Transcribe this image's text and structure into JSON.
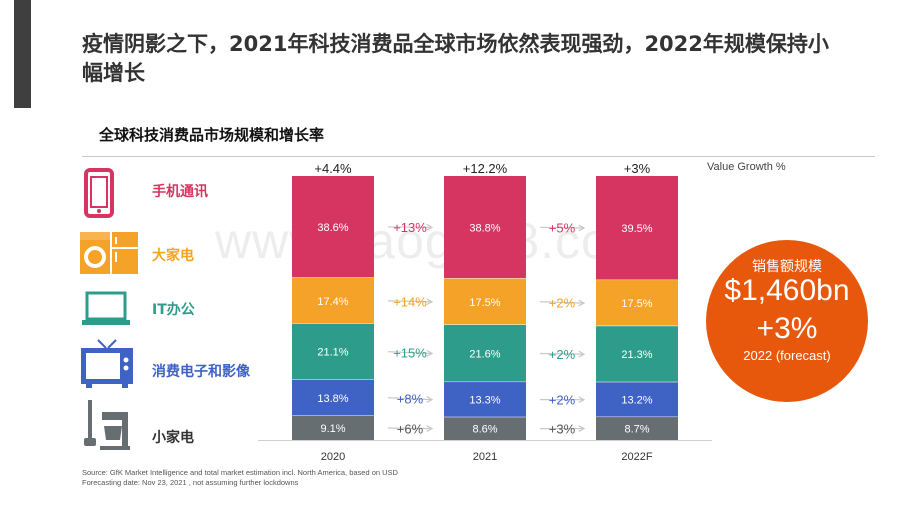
{
  "slide": {
    "title": "疫情阴影之下，2021年科技消费品全球市场依然表现强劲，2022年规模保持小幅增长",
    "subtitle": "全球科技消费品市场规模和增长率",
    "value_growth_label": "Value Growth %",
    "source_line1": "Source: GfK Market Intelligence and total market estimation incl. North America, based on USD",
    "source_line2": "Forecasting date: Nov 23, 2021 , not assuming further lockdowns",
    "watermark": "www.baogao8.com"
  },
  "categories": [
    {
      "label": "手机通讯",
      "icon": "smartphone-icon",
      "color": "#d63562"
    },
    {
      "label": "大家电",
      "icon": "washer-fridge-icon",
      "color": "#f5a228"
    },
    {
      "label": "IT办公",
      "icon": "laptop-icon",
      "color": "#2e9c8a"
    },
    {
      "label": "消费电子和影像",
      "icon": "tv-icon",
      "color": "#3f62c5"
    },
    {
      "label": "小家电",
      "icon": "appliance-icon",
      "color": "#666e72"
    }
  ],
  "badge": {
    "line1": "销售额规模",
    "line2": "$1,460bn",
    "line3": "+3%",
    "line4": "2022 (forecast)",
    "color": "#e8580c"
  },
  "chart_data": {
    "type": "bar",
    "stacked": true,
    "categories": [
      "2020",
      "2021",
      "2022F"
    ],
    "totals_growth": [
      "+4.4%",
      "+12.2%",
      "+3%"
    ],
    "series": [
      {
        "name": "手机通讯",
        "color": "#d63562",
        "values": [
          38.6,
          38.8,
          39.5
        ],
        "labels": [
          "38.6%",
          "38.8%",
          "39.5%"
        ]
      },
      {
        "name": "大家电",
        "color": "#f5a228",
        "values": [
          17.4,
          17.5,
          17.5
        ],
        "labels": [
          "17.4%",
          "17.5%",
          "17.5%"
        ]
      },
      {
        "name": "IT办公",
        "color": "#2e9c8a",
        "values": [
          21.1,
          21.6,
          21.3
        ],
        "labels": [
          "21.1%",
          "21.6%",
          "21.3%"
        ]
      },
      {
        "name": "消费电子和影像",
        "color": "#3f62c5",
        "values": [
          13.8,
          13.3,
          13.2
        ],
        "labels": [
          "13.8%",
          "13.3%",
          "13.2%"
        ]
      },
      {
        "name": "小家电",
        "color": "#666e72",
        "values": [
          9.1,
          8.6,
          8.7
        ],
        "labels": [
          "9.1%",
          "8.6%",
          "8.7%"
        ]
      }
    ],
    "growth_2020_2021": [
      "+13%",
      "+14%",
      "+15%",
      "+8%",
      "+6%"
    ],
    "growth_2021_2022": [
      "+5%",
      "+2%",
      "+2%",
      "+2%",
      "+3%"
    ],
    "ylim": [
      0,
      100
    ]
  }
}
